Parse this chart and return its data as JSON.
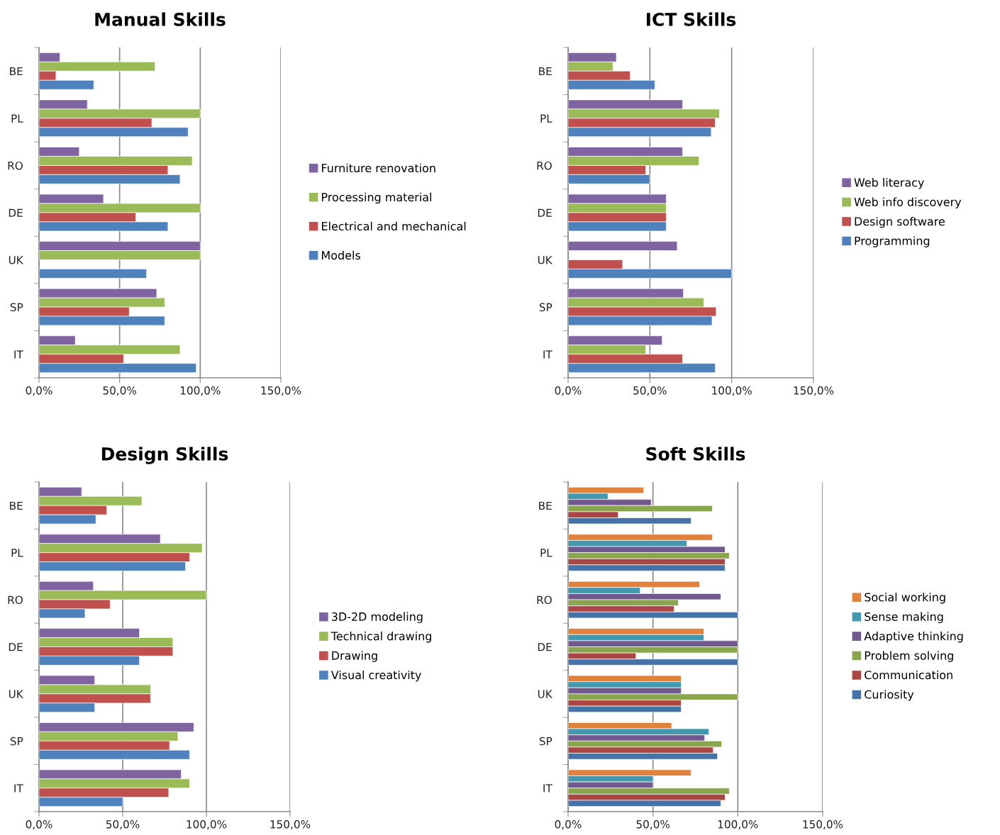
{
  "chart_data": [
    {
      "type": "bar",
      "orientation": "horizontal",
      "title": "Manual Skills",
      "categories": [
        "BE",
        "PL",
        "RO",
        "DE",
        "UK",
        "SP",
        "IT"
      ],
      "xlim": [
        0,
        150
      ],
      "xticks": [
        {
          "value": 0,
          "label": "0,0%"
        },
        {
          "value": 50,
          "label": "50,0%"
        },
        {
          "value": 100,
          "label": "100,0%"
        },
        {
          "value": 150,
          "label": "150,0%"
        }
      ],
      "grid": "x",
      "legend": "right",
      "series": [
        {
          "name": "Furniture renovation",
          "color": "#8064a2",
          "values": [
            13,
            30,
            25,
            40,
            100,
            73,
            22.5
          ]
        },
        {
          "name": "Processing material",
          "color": "#9bbb59",
          "values": [
            72,
            100,
            95,
            100,
            100,
            78,
            87.5
          ]
        },
        {
          "name": "Electrical and mechanical",
          "color": "#c0504d",
          "values": [
            10.5,
            70,
            80,
            60,
            null,
            56,
            52.5
          ]
        },
        {
          "name": "Models",
          "color": "#4f81bd",
          "values": [
            34,
            92.5,
            87.5,
            80,
            66.7,
            78,
            97.5
          ]
        }
      ]
    },
    {
      "type": "bar",
      "orientation": "horizontal",
      "title": "ICT Skills",
      "categories": [
        "BE",
        "PL",
        "RO",
        "DE",
        "UK",
        "SP",
        "IT"
      ],
      "xlim": [
        0,
        150
      ],
      "xticks": [
        {
          "value": 0,
          "label": "0,0%"
        },
        {
          "value": 50,
          "label": "50,0%"
        },
        {
          "value": 100,
          "label": "100,0%"
        },
        {
          "value": 150,
          "label": "150,0%"
        }
      ],
      "grid": "x",
      "legend": "right",
      "series": [
        {
          "name": "Web literacy",
          "color": "#8064a2",
          "values": [
            29.5,
            70,
            70,
            60,
            66.7,
            70.5,
            57.5
          ]
        },
        {
          "name": "Web info discovery",
          "color": "#9bbb59",
          "values": [
            27.5,
            92.5,
            80,
            60,
            null,
            83,
            47.5
          ]
        },
        {
          "name": "Design software",
          "color": "#c0504d",
          "values": [
            38,
            90,
            47.5,
            60,
            33.3,
            90.5,
            70
          ]
        },
        {
          "name": "Programming",
          "color": "#4f81bd",
          "values": [
            53,
            87.5,
            50,
            60,
            100,
            88,
            90
          ]
        }
      ]
    },
    {
      "type": "bar",
      "orientation": "horizontal",
      "title": "Design Skills",
      "categories": [
        "BE",
        "PL",
        "RO",
        "DE",
        "UK",
        "SP",
        "IT"
      ],
      "xlim": [
        0,
        150
      ],
      "xticks": [
        {
          "value": 0,
          "label": "0,0%"
        },
        {
          "value": 50,
          "label": "50,0%"
        },
        {
          "value": 100,
          "label": "100,0%"
        },
        {
          "value": 150,
          "label": "150,0%"
        }
      ],
      "grid": "x",
      "legend": "right",
      "series": [
        {
          "name": "3D-2D modeling",
          "color": "#8064a2",
          "values": [
            25.5,
            72.5,
            32.5,
            60,
            33.3,
            92.5,
            85
          ]
        },
        {
          "name": "Technical drawing",
          "color": "#9bbb59",
          "values": [
            61.5,
            97.5,
            100,
            80,
            66.7,
            83,
            90
          ]
        },
        {
          "name": "Drawing",
          "color": "#c0504d",
          "values": [
            40.5,
            90,
            42.5,
            80,
            66.7,
            78,
            77.5
          ]
        },
        {
          "name": "Visual creativity",
          "color": "#4f81bd",
          "values": [
            34,
            87.5,
            27.5,
            60,
            33.3,
            90,
            50
          ]
        }
      ]
    },
    {
      "type": "bar",
      "orientation": "horizontal",
      "title": "Soft Skills",
      "categories": [
        "BE",
        "PL",
        "RO",
        "DE",
        "UK",
        "SP",
        "IT"
      ],
      "xlim": [
        0,
        150
      ],
      "xticks": [
        {
          "value": 0,
          "label": "0,0%"
        },
        {
          "value": 50,
          "label": "50,0%"
        },
        {
          "value": 100,
          "label": "100,0%"
        },
        {
          "value": 150,
          "label": "150,0%"
        }
      ],
      "grid": "x",
      "legend": "right",
      "series": [
        {
          "name": "Social working",
          "color": "#e0823c",
          "values": [
            44.5,
            85,
            77.5,
            80,
            66.7,
            61,
            72.5
          ]
        },
        {
          "name": "Sense making",
          "color": "#4198af",
          "values": [
            23.5,
            70,
            42.5,
            80,
            66.7,
            83,
            50
          ]
        },
        {
          "name": "Adaptive thinking",
          "color": "#71588f",
          "values": [
            49,
            92.5,
            90,
            100,
            66.7,
            80.5,
            50
          ]
        },
        {
          "name": "Problem solving",
          "color": "#89a54e",
          "values": [
            85,
            95,
            65,
            100,
            100,
            90.5,
            95
          ]
        },
        {
          "name": "Communication",
          "color": "#aa4643",
          "values": [
            29.5,
            92.5,
            62.5,
            40,
            66.7,
            85.5,
            92.5
          ]
        },
        {
          "name": "Curiosity",
          "color": "#4572a7",
          "values": [
            72.5,
            92.5,
            100,
            100,
            66.7,
            88,
            90
          ]
        }
      ]
    }
  ]
}
